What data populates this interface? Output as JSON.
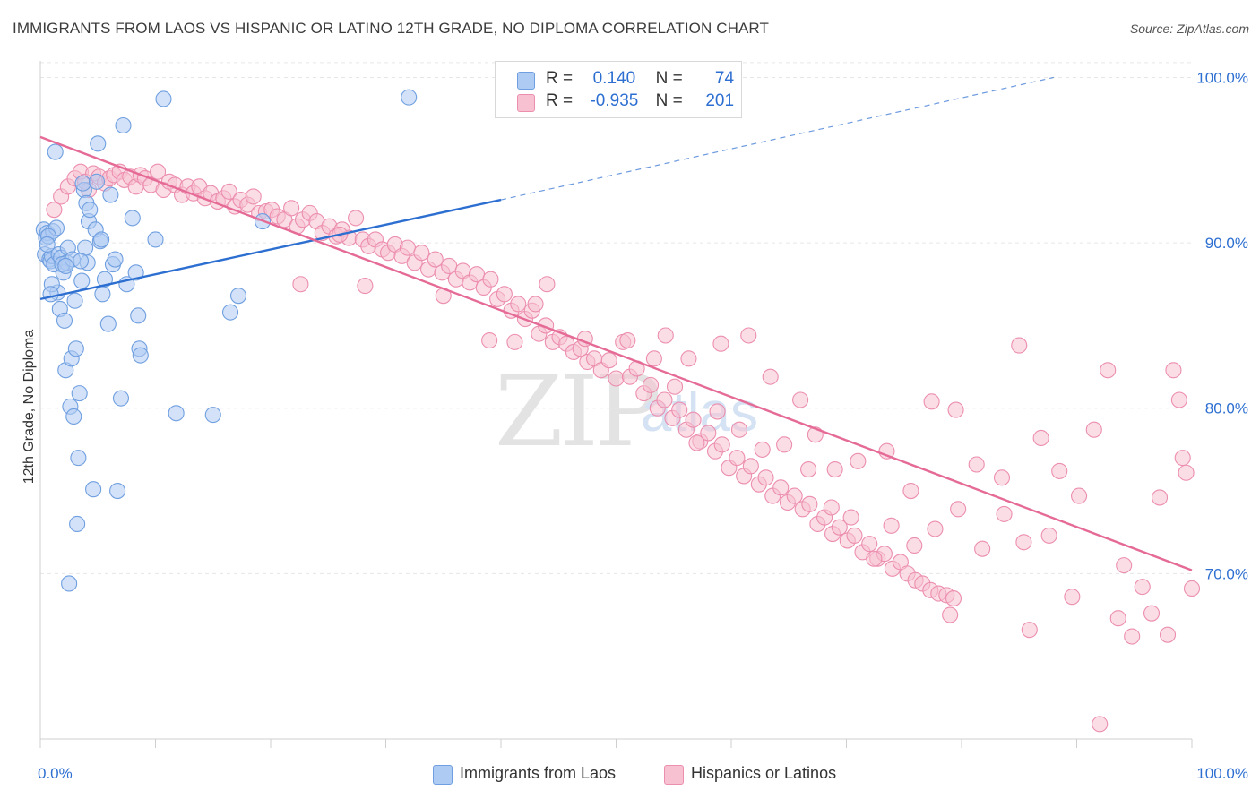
{
  "title": "IMMIGRANTS FROM LAOS VS HISPANIC OR LATINO 12TH GRADE, NO DIPLOMA CORRELATION CHART",
  "source": "Source: ZipAtlas.com",
  "watermark": {
    "zip": "ZIP",
    "atlas": "atlas"
  },
  "legend_top": [
    {
      "r_label": "R =",
      "r_value": "0.140",
      "n_label": "N =",
      "n_value": "74"
    },
    {
      "r_label": "R =",
      "r_value": "-0.935",
      "n_label": "N =",
      "n_value": "201"
    }
  ],
  "legend_bottom": [
    {
      "label": "Immigrants from Laos"
    },
    {
      "label": "Hispanics or Latinos"
    }
  ],
  "colors": {
    "blue_fill": "#aecbf3",
    "blue_stroke": "#6f9fe0",
    "blue_line": "#2d6fd1",
    "pink_fill": "#f7c1d2",
    "pink_stroke": "#ec8eae",
    "pink_line": "#e56b96",
    "grid": "#e6e6e6",
    "axis_text": "#2d6fd1"
  },
  "chart_data": {
    "type": "scatter",
    "title": "IMMIGRANTS FROM LAOS VS HISPANIC OR LATINO 12TH GRADE, NO DIPLOMA CORRELATION CHART",
    "xlabel": "",
    "ylabel": "12th Grade, No Diploma",
    "xlim": [
      0,
      100
    ],
    "ylim": [
      60,
      101
    ],
    "x_tick_labels": [
      "0.0%",
      "100.0%"
    ],
    "y_ticks": [
      70,
      80,
      90,
      100
    ],
    "y_tick_labels": [
      "70.0%",
      "80.0%",
      "90.0%",
      "100.0%"
    ],
    "grid": true,
    "legend_placement": "top-center",
    "series": [
      {
        "name": "Immigrants from Laos",
        "r": 0.14,
        "n": 74,
        "trend": {
          "x0": 0,
          "y0": 86.6,
          "x1": 40,
          "y1": 92.6,
          "dashed_to_x": 88,
          "dashed_to_y": 100
        },
        "points": [
          [
            0.3,
            90.8
          ],
          [
            0.4,
            89.3
          ],
          [
            0.5,
            90.3
          ],
          [
            0.6,
            90.6
          ],
          [
            0.8,
            89.0
          ],
          [
            0.9,
            88.9
          ],
          [
            1.0,
            89.2
          ],
          [
            1.1,
            90.7
          ],
          [
            1.2,
            88.7
          ],
          [
            1.5,
            87.0
          ],
          [
            1.6,
            89.3
          ],
          [
            1.7,
            86.0
          ],
          [
            1.8,
            89.1
          ],
          [
            2.0,
            88.2
          ],
          [
            2.1,
            85.3
          ],
          [
            2.2,
            82.3
          ],
          [
            2.4,
            89.7
          ],
          [
            2.6,
            80.1
          ],
          [
            2.7,
            83.0
          ],
          [
            2.9,
            79.5
          ],
          [
            3.0,
            86.5
          ],
          [
            3.1,
            83.6
          ],
          [
            3.3,
            77.0
          ],
          [
            3.4,
            80.9
          ],
          [
            3.6,
            87.7
          ],
          [
            3.8,
            93.2
          ],
          [
            3.9,
            89.7
          ],
          [
            4.0,
            92.4
          ],
          [
            4.2,
            91.3
          ],
          [
            4.3,
            92.0
          ],
          [
            4.6,
            75.1
          ],
          [
            4.8,
            90.8
          ],
          [
            5.0,
            96.0
          ],
          [
            5.2,
            90.1
          ],
          [
            5.4,
            86.9
          ],
          [
            5.6,
            87.8
          ],
          [
            5.9,
            85.1
          ],
          [
            6.3,
            88.7
          ],
          [
            6.5,
            89.0
          ],
          [
            6.7,
            75.0
          ],
          [
            7.0,
            80.6
          ],
          [
            7.2,
            97.1
          ],
          [
            7.5,
            87.5
          ],
          [
            8.0,
            91.5
          ],
          [
            8.3,
            88.2
          ],
          [
            8.5,
            85.6
          ],
          [
            8.6,
            83.6
          ],
          [
            8.7,
            83.2
          ],
          [
            10.0,
            90.2
          ],
          [
            10.7,
            98.7
          ],
          [
            11.8,
            79.7
          ],
          [
            15.0,
            79.6
          ],
          [
            16.5,
            85.8
          ],
          [
            17.2,
            86.8
          ],
          [
            19.3,
            91.3
          ],
          [
            32.0,
            98.8
          ],
          [
            1.0,
            87.5
          ],
          [
            2.3,
            88.8
          ],
          [
            3.7,
            93.6
          ],
          [
            1.4,
            90.9
          ],
          [
            4.9,
            93.7
          ],
          [
            0.7,
            90.4
          ],
          [
            3.2,
            73.0
          ],
          [
            2.5,
            69.4
          ],
          [
            1.9,
            88.7
          ],
          [
            2.8,
            89.0
          ],
          [
            4.1,
            88.8
          ],
          [
            0.9,
            86.9
          ],
          [
            6.1,
            92.9
          ],
          [
            1.3,
            95.5
          ],
          [
            2.2,
            88.6
          ],
          [
            5.3,
            90.2
          ],
          [
            3.5,
            88.9
          ],
          [
            0.6,
            89.9
          ]
        ]
      },
      {
        "name": "Hispanics or Latinos",
        "r": -0.935,
        "n": 201,
        "trend": {
          "x0": 0,
          "y0": 96.4,
          "x1": 100,
          "y1": 70.2
        },
        "points": [
          [
            1.2,
            92.0
          ],
          [
            1.8,
            92.8
          ],
          [
            2.4,
            93.4
          ],
          [
            3.0,
            93.9
          ],
          [
            3.5,
            94.3
          ],
          [
            3.9,
            93.7
          ],
          [
            4.2,
            93.2
          ],
          [
            4.6,
            94.2
          ],
          [
            5.1,
            94.0
          ],
          [
            5.6,
            93.6
          ],
          [
            6.0,
            93.9
          ],
          [
            6.4,
            94.1
          ],
          [
            6.9,
            94.3
          ],
          [
            7.3,
            93.8
          ],
          [
            7.8,
            94.0
          ],
          [
            8.3,
            93.4
          ],
          [
            8.7,
            94.1
          ],
          [
            9.1,
            93.9
          ],
          [
            9.6,
            93.5
          ],
          [
            10.2,
            94.3
          ],
          [
            10.7,
            93.2
          ],
          [
            11.2,
            93.7
          ],
          [
            11.7,
            93.5
          ],
          [
            12.3,
            92.9
          ],
          [
            12.8,
            93.4
          ],
          [
            13.3,
            93.0
          ],
          [
            13.8,
            93.4
          ],
          [
            14.3,
            92.7
          ],
          [
            14.8,
            93.0
          ],
          [
            15.4,
            92.5
          ],
          [
            15.9,
            92.7
          ],
          [
            16.4,
            93.1
          ],
          [
            16.9,
            92.2
          ],
          [
            17.4,
            92.6
          ],
          [
            18.0,
            92.3
          ],
          [
            18.5,
            92.8
          ],
          [
            19.0,
            91.8
          ],
          [
            19.6,
            91.9
          ],
          [
            20.1,
            92.0
          ],
          [
            20.6,
            91.6
          ],
          [
            21.2,
            91.4
          ],
          [
            21.8,
            92.1
          ],
          [
            22.3,
            91.0
          ],
          [
            22.8,
            91.4
          ],
          [
            23.4,
            91.8
          ],
          [
            24.0,
            91.3
          ],
          [
            24.5,
            90.6
          ],
          [
            25.1,
            91.0
          ],
          [
            25.7,
            90.4
          ],
          [
            26.2,
            90.8
          ],
          [
            26.8,
            90.3
          ],
          [
            27.4,
            91.5
          ],
          [
            28.0,
            90.2
          ],
          [
            28.5,
            89.8
          ],
          [
            29.1,
            90.2
          ],
          [
            29.7,
            89.6
          ],
          [
            30.2,
            89.4
          ],
          [
            30.8,
            89.9
          ],
          [
            31.4,
            89.2
          ],
          [
            31.9,
            89.7
          ],
          [
            32.5,
            88.8
          ],
          [
            33.1,
            89.4
          ],
          [
            33.7,
            88.4
          ],
          [
            34.3,
            89.0
          ],
          [
            34.9,
            88.2
          ],
          [
            35.5,
            88.6
          ],
          [
            36.1,
            87.8
          ],
          [
            36.7,
            88.3
          ],
          [
            37.3,
            87.6
          ],
          [
            37.9,
            88.1
          ],
          [
            38.5,
            87.3
          ],
          [
            39.1,
            87.8
          ],
          [
            39.7,
            86.6
          ],
          [
            40.3,
            86.9
          ],
          [
            40.9,
            85.9
          ],
          [
            41.5,
            86.3
          ],
          [
            42.1,
            85.4
          ],
          [
            42.7,
            85.9
          ],
          [
            43.3,
            84.5
          ],
          [
            43.9,
            85.0
          ],
          [
            44.5,
            84.0
          ],
          [
            45.1,
            84.3
          ],
          [
            45.7,
            83.9
          ],
          [
            46.3,
            83.4
          ],
          [
            46.9,
            83.6
          ],
          [
            47.5,
            82.8
          ],
          [
            48.1,
            83.0
          ],
          [
            48.7,
            82.3
          ],
          [
            49.4,
            82.9
          ],
          [
            50.0,
            81.8
          ],
          [
            50.6,
            84.0
          ],
          [
            51.2,
            81.9
          ],
          [
            51.8,
            82.4
          ],
          [
            52.4,
            80.9
          ],
          [
            53.0,
            81.4
          ],
          [
            53.6,
            80.0
          ],
          [
            54.2,
            80.5
          ],
          [
            54.9,
            79.4
          ],
          [
            55.5,
            79.9
          ],
          [
            56.1,
            78.7
          ],
          [
            56.7,
            79.3
          ],
          [
            57.3,
            78.0
          ],
          [
            58.0,
            78.5
          ],
          [
            58.6,
            77.4
          ],
          [
            59.2,
            77.8
          ],
          [
            59.8,
            76.4
          ],
          [
            60.5,
            77.0
          ],
          [
            61.1,
            75.9
          ],
          [
            61.7,
            76.5
          ],
          [
            62.4,
            75.4
          ],
          [
            63.0,
            75.8
          ],
          [
            63.6,
            74.7
          ],
          [
            64.3,
            75.2
          ],
          [
            64.9,
            74.3
          ],
          [
            65.5,
            74.7
          ],
          [
            66.2,
            73.9
          ],
          [
            66.8,
            74.2
          ],
          [
            67.5,
            73.0
          ],
          [
            68.1,
            73.4
          ],
          [
            68.8,
            72.4
          ],
          [
            69.4,
            72.8
          ],
          [
            70.1,
            72.0
          ],
          [
            70.7,
            72.3
          ],
          [
            71.4,
            71.3
          ],
          [
            72.0,
            71.8
          ],
          [
            72.7,
            70.9
          ],
          [
            73.3,
            71.2
          ],
          [
            74.0,
            70.3
          ],
          [
            74.7,
            70.7
          ],
          [
            75.3,
            70.0
          ],
          [
            76.0,
            69.6
          ],
          [
            76.6,
            69.4
          ],
          [
            77.3,
            69.0
          ],
          [
            78.0,
            68.8
          ],
          [
            78.7,
            68.7
          ],
          [
            79.3,
            68.5
          ],
          [
            22.6,
            87.5
          ],
          [
            28.2,
            87.4
          ],
          [
            35.0,
            86.8
          ],
          [
            39.0,
            84.1
          ],
          [
            44.0,
            87.5
          ],
          [
            47.3,
            84.2
          ],
          [
            51.0,
            84.1
          ],
          [
            54.3,
            84.4
          ],
          [
            56.3,
            83.0
          ],
          [
            59.1,
            83.9
          ],
          [
            61.5,
            84.4
          ],
          [
            63.4,
            81.9
          ],
          [
            66.0,
            80.5
          ],
          [
            67.3,
            78.4
          ],
          [
            69.0,
            76.3
          ],
          [
            71.0,
            76.8
          ],
          [
            73.5,
            77.4
          ],
          [
            75.6,
            75.0
          ],
          [
            77.4,
            80.4
          ],
          [
            79.5,
            79.9
          ],
          [
            81.3,
            76.6
          ],
          [
            83.5,
            75.8
          ],
          [
            85.0,
            83.8
          ],
          [
            86.9,
            78.2
          ],
          [
            88.5,
            76.2
          ],
          [
            90.2,
            74.7
          ],
          [
            91.5,
            78.7
          ],
          [
            92.7,
            82.3
          ],
          [
            94.1,
            70.5
          ],
          [
            95.7,
            69.2
          ],
          [
            97.2,
            74.6
          ],
          [
            98.4,
            82.3
          ],
          [
            98.9,
            80.5
          ],
          [
            99.5,
            76.1
          ],
          [
            100.0,
            69.1
          ],
          [
            99.2,
            77.0
          ],
          [
            96.5,
            67.6
          ],
          [
            94.8,
            66.2
          ],
          [
            92.0,
            60.9
          ],
          [
            89.6,
            68.6
          ],
          [
            87.6,
            72.3
          ],
          [
            85.4,
            71.9
          ],
          [
            83.7,
            73.6
          ],
          [
            81.8,
            71.5
          ],
          [
            79.7,
            73.9
          ],
          [
            77.7,
            72.7
          ],
          [
            75.9,
            71.7
          ],
          [
            73.9,
            72.9
          ],
          [
            72.4,
            70.9
          ],
          [
            70.4,
            73.4
          ],
          [
            68.7,
            74.0
          ],
          [
            66.7,
            76.3
          ],
          [
            64.6,
            77.8
          ],
          [
            62.7,
            77.5
          ],
          [
            60.7,
            78.7
          ],
          [
            58.8,
            79.8
          ],
          [
            57.0,
            77.9
          ],
          [
            55.1,
            81.3
          ],
          [
            53.3,
            83.0
          ],
          [
            43.0,
            86.3
          ],
          [
            26.0,
            90.5
          ],
          [
            41.2,
            84.0
          ],
          [
            79.0,
            67.5
          ],
          [
            93.6,
            67.3
          ],
          [
            97.9,
            66.3
          ],
          [
            85.9,
            66.6
          ]
        ]
      }
    ]
  }
}
